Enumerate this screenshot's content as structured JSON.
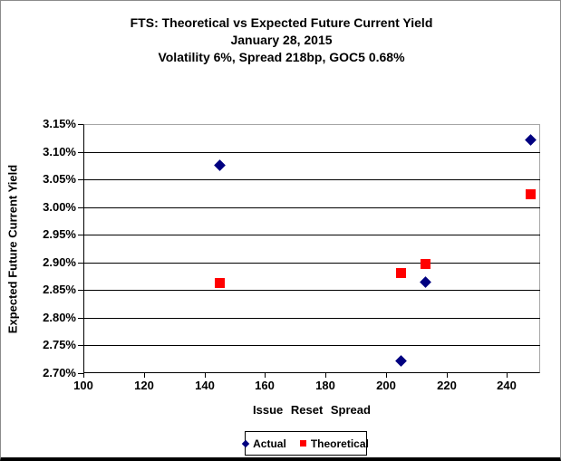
{
  "chart_data": {
    "type": "scatter",
    "title": "FTS: Theoretical vs Expected Future Current Yield",
    "subtitle1": "January 28, 2015",
    "subtitle2": "Volatility 6%, Spread 218bp, GOC5 0.68%",
    "xlabel": "Issue Reset Spread",
    "ylabel": "Expected Future Current Yield",
    "xlim": [
      100,
      251
    ],
    "ylim": [
      2.7,
      3.15
    ],
    "x_ticks": [
      100,
      120,
      140,
      160,
      180,
      200,
      220,
      240
    ],
    "x_tick_labels": [
      "100",
      "120",
      "140",
      "160",
      "180",
      "200",
      "220",
      "240"
    ],
    "y_ticks": [
      3.15,
      3.1,
      3.05,
      3.0,
      2.95,
      2.9,
      2.85,
      2.8,
      2.75,
      2.7
    ],
    "y_tick_labels": [
      "3.15%",
      "3.10%",
      "3.05%",
      "3.00%",
      "2.95%",
      "2.90%",
      "2.85%",
      "2.80%",
      "2.75%",
      "2.70%"
    ],
    "grid": "horizontal-major",
    "legend_position": "bottom",
    "series": [
      {
        "name": "Actual",
        "marker": "diamond",
        "color": "#000080",
        "points": [
          [
            145,
            3.076
          ],
          [
            205,
            2.722
          ],
          [
            213,
            2.865
          ],
          [
            248,
            3.121
          ]
        ]
      },
      {
        "name": "Theoretical",
        "marker": "square",
        "color": "#ff0000",
        "points": [
          [
            145,
            2.863
          ],
          [
            205,
            2.881
          ],
          [
            213,
            2.898
          ],
          [
            248,
            3.023
          ]
        ]
      }
    ]
  },
  "colors": {
    "text": "#000000",
    "gridline": "#000000",
    "plot_border_gray": "#a6a6a6",
    "actual_marker": "#000080",
    "theoretical_marker": "#ff0000"
  }
}
